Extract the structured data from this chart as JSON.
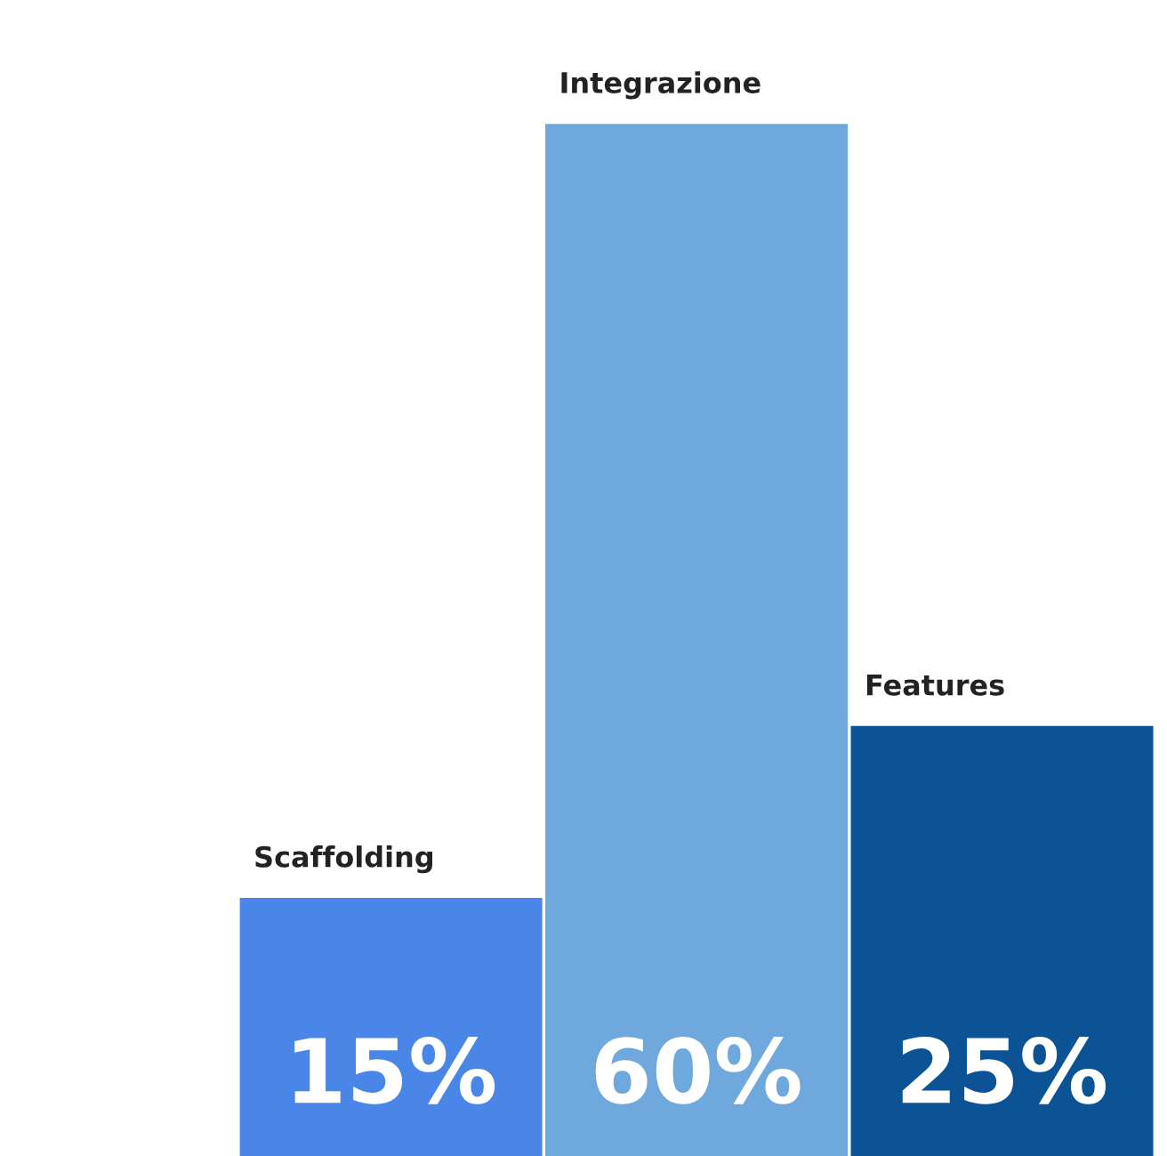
{
  "chart_data": {
    "type": "bar",
    "categories": [
      "Scaffolding",
      "Integrazione",
      "Features"
    ],
    "values": [
      15,
      60,
      25
    ],
    "colors": [
      "#4a86e8",
      "#6fa8dc",
      "#0b5394"
    ],
    "value_labels": [
      "15%",
      "60%",
      "25%"
    ]
  }
}
